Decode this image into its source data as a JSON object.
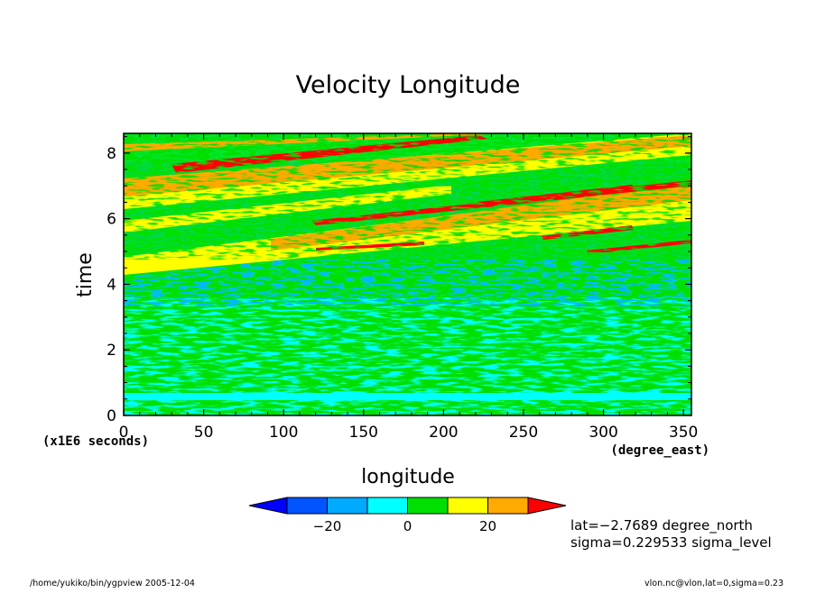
{
  "chart_data": {
    "type": "heatmap",
    "title": "Velocity Longitude",
    "xlabel": "longitude",
    "x_units": "(degree_east)",
    "ylabel": "time",
    "y_units": "(x1E6 seconds)",
    "xlim": [
      0,
      355
    ],
    "ylim": [
      0,
      8.6
    ],
    "x_ticks": [
      0,
      50,
      100,
      150,
      200,
      250,
      300,
      350
    ],
    "y_ticks": [
      0,
      2,
      4,
      6,
      8
    ],
    "colorbar": {
      "levels": [
        -30,
        -20,
        -10,
        0,
        10,
        20,
        30
      ],
      "tick_values": [
        -20,
        0,
        20
      ],
      "tick_labels": [
        "−20",
        "0",
        "20"
      ],
      "colors": [
        "#0000ff",
        "#0055ff",
        "#00aaff",
        "#00ffff",
        "#00e000",
        "#ffff00",
        "#ffaa00",
        "#ff0000"
      ]
    },
    "annotations": [
      "lat=−2.7689 degree_north",
      "sigma=0.229533 sigma_level"
    ],
    "footer_left": "/home/yukiko/bin/ygpview  2005-12-04",
    "footer_right": "vlon.nc@vlon,lat=0,sigma=0.23"
  }
}
